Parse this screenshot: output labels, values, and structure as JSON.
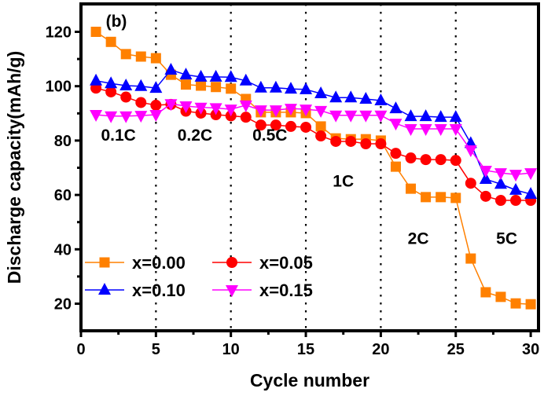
{
  "chart_data": {
    "type": "line",
    "panel_label": "(b)",
    "title": "",
    "xlabel": "Cycle number",
    "ylabel": "Discharge capacity(mAh/g)",
    "xlim": [
      0,
      30.5
    ],
    "ylim": [
      13,
      128
    ],
    "xticks": [
      0,
      5,
      10,
      15,
      20,
      25,
      30
    ],
    "yticks": [
      20,
      40,
      60,
      80,
      100,
      120
    ],
    "grid": false,
    "legend_placement": "lower-left",
    "rate_dividers": [
      5,
      10,
      15,
      20,
      25
    ],
    "annotations": [
      {
        "text": "0.1C",
        "x": 2.5,
        "y": 80
      },
      {
        "text": "0.2C",
        "x": 7.6,
        "y": 80
      },
      {
        "text": "0.5C",
        "x": 12.6,
        "y": 80
      },
      {
        "text": "1C",
        "x": 17.5,
        "y": 63
      },
      {
        "text": "2C",
        "x": 22.5,
        "y": 42
      },
      {
        "text": "5C",
        "x": 28.4,
        "y": 42
      }
    ],
    "x": [
      1,
      2,
      3,
      4,
      5,
      6,
      7,
      8,
      9,
      10,
      11,
      12,
      13,
      14,
      15,
      16,
      17,
      18,
      19,
      20,
      21,
      22,
      23,
      24,
      25,
      26,
      27,
      28,
      29,
      30
    ],
    "series": [
      {
        "name": "x=0.00",
        "color": "#ff8000",
        "marker": "square",
        "values": [
          120.0,
          116.3,
          111.8,
          110.9,
          110.3,
          104.2,
          100.6,
          100.2,
          99.7,
          99.1,
          95.3,
          90.4,
          90.4,
          90.4,
          90.1,
          85.2,
          80.8,
          80.5,
          80.5,
          80.0,
          70.4,
          62.3,
          59.2,
          59.2,
          58.9,
          36.6,
          24.2,
          22.5,
          20.1,
          19.8
        ]
      },
      {
        "name": "x=0.05",
        "color": "#ff0000",
        "marker": "circle",
        "values": [
          99.3,
          97.9,
          96.0,
          94.0,
          93.0,
          93.3,
          90.8,
          90.1,
          89.5,
          89.1,
          88.6,
          85.7,
          85.7,
          85.2,
          84.9,
          81.7,
          79.7,
          79.7,
          78.8,
          78.8,
          75.3,
          73.6,
          73.0,
          73.0,
          72.7,
          64.3,
          59.5,
          58.0,
          58.0,
          58.0
        ]
      },
      {
        "name": "x=0.10",
        "color": "#0000ff",
        "marker": "triangle-up",
        "values": [
          102.0,
          101.0,
          100.2,
          100.0,
          99.3,
          106.0,
          104.2,
          103.4,
          103.4,
          103.3,
          102.0,
          99.4,
          99.4,
          99.0,
          98.8,
          97.3,
          95.8,
          95.8,
          95.3,
          94.7,
          91.8,
          88.9,
          88.9,
          88.6,
          88.6,
          79.0,
          65.8,
          64.0,
          61.8,
          60.3
        ]
      },
      {
        "name": "x=0.15",
        "color": "#ff00ff",
        "marker": "triangle-down",
        "values": [
          89.5,
          89.0,
          89.0,
          89.2,
          89.5,
          93.5,
          92.7,
          92.2,
          92.0,
          91.5,
          93.0,
          91.2,
          91.2,
          91.8,
          91.5,
          91.0,
          89.3,
          89.3,
          89.3,
          89.3,
          86.3,
          84.3,
          84.3,
          84.3,
          84.3,
          76.5,
          69.0,
          68.1,
          67.5,
          68.1
        ]
      }
    ]
  }
}
